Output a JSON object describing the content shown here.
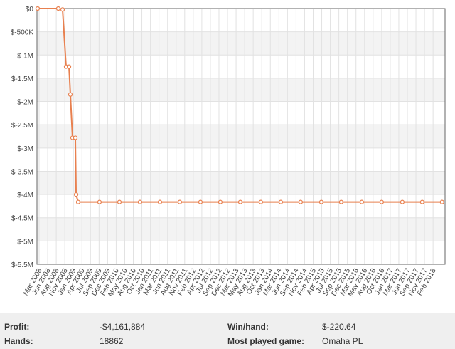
{
  "chart_data": {
    "type": "line",
    "categories": [
      "Mar 2008",
      "Jun 2008",
      "Aug 2008",
      "Nov 2008",
      "Jan 2009",
      "Apr 2009",
      "Jul 2009",
      "Sep 2009",
      "Dec 2009",
      "Feb 2010",
      "May 2010",
      "Aug 2010",
      "Oct 2010",
      "Jan 2011",
      "Mar 2011",
      "Jun 2011",
      "Aug 2011",
      "Nov 2011",
      "Feb 2012",
      "Apr 2012",
      "Jul 2012",
      "Sep 2012",
      "Dec 2012",
      "Mar 2013",
      "May 2013",
      "Aug 2013",
      "Oct 2013",
      "Jan 2014",
      "Mar 2014",
      "Jun 2014",
      "Sep 2014",
      "Nov 2014",
      "Feb 2015",
      "Apr 2015",
      "Jul 2015",
      "Sep 2015",
      "Dec 2015",
      "Mar 2016",
      "May 2016",
      "Aug 2016",
      "Oct 2016",
      "Jan 2017",
      "Mar 2017",
      "Jun 2017",
      "Sep 2017",
      "Nov 2017",
      "Feb 2018"
    ],
    "x": [
      -0.17,
      2.24,
      2.74,
      3.15,
      3.49,
      3.65,
      3.9,
      4.23,
      4.32,
      4.56,
      7.05,
      9.38,
      11.78,
      14.11,
      16.43,
      18.84,
      21.16,
      23.49,
      25.89,
      28.22,
      30.54,
      32.95,
      35.27,
      37.68,
      40.0,
      42.41,
      44.73,
      47.05
    ],
    "series": [
      {
        "color": "#e8804f",
        "values": [
          0,
          0,
          -20000,
          -1250000,
          -1250000,
          -1850000,
          -2780000,
          -2780000,
          -4000000,
          -4161884,
          -4161884,
          -4161884,
          -4161884,
          -4161884,
          -4161884,
          -4161884,
          -4161884,
          -4161884,
          -4161884,
          -4161884,
          -4161884,
          -4161884,
          -4161884,
          -4161884,
          -4161884,
          -4161884,
          -4161884,
          -4161884
        ]
      }
    ],
    "xlim": [
      -0.25,
      47.4
    ],
    "ylim": [
      -5500000,
      0
    ],
    "yticks": [
      {
        "value": 0,
        "label": "$0"
      },
      {
        "value": -500000,
        "label": "$-500K"
      },
      {
        "value": -1000000,
        "label": "$-1M"
      },
      {
        "value": -1500000,
        "label": "$-1.5M"
      },
      {
        "value": -2000000,
        "label": "$-2M"
      },
      {
        "value": -2500000,
        "label": "$-2.5M"
      },
      {
        "value": -3000000,
        "label": "$-3M"
      },
      {
        "value": -3500000,
        "label": "$-3.5M"
      },
      {
        "value": -4000000,
        "label": "$-4M"
      },
      {
        "value": -4500000,
        "label": "$-4.5M"
      },
      {
        "value": -5000000,
        "label": "$-5M"
      },
      {
        "value": -5500000,
        "label": "$-5.5M"
      }
    ],
    "grid": true
  },
  "stats": {
    "profit_label": "Profit:",
    "profit": "-$4,161,884",
    "hands_label": "Hands:",
    "hands": "18862",
    "winhand_label": "Win/hand:",
    "winhand": "$-220.64",
    "game_label": "Most played game:",
    "game": "Omaha PL"
  }
}
